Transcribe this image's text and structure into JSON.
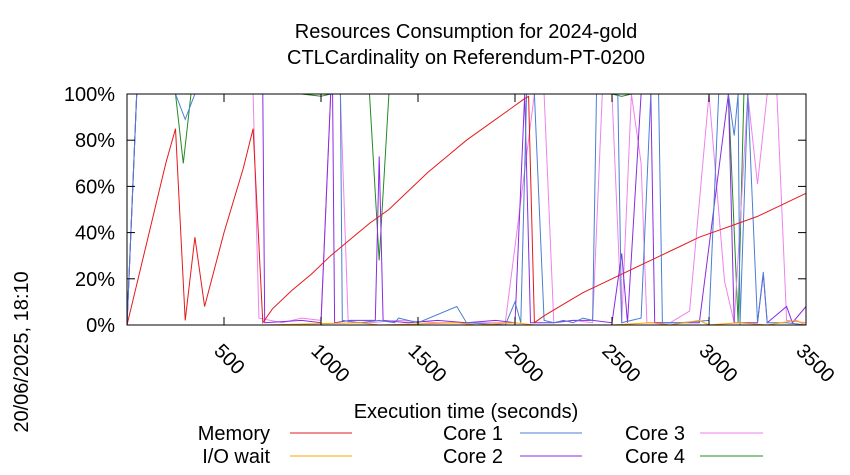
{
  "chart_data": {
    "type": "line",
    "title": "Resources Consumption for 2024-gold",
    "subtitle": "CTLCardinality on Referendum-PT-0200",
    "xlabel": "Execution time (seconds)",
    "ylabel": "",
    "timestamp": "20/06/2025, 18:10",
    "xlim": [
      0,
      3500
    ],
    "ylim": [
      0,
      100
    ],
    "x_ticks": [
      500,
      1000,
      1500,
      2000,
      2500,
      3000,
      3500
    ],
    "x_tick_labels": [
      "500",
      "1000",
      "1500",
      "2000",
      "2500",
      "3000",
      "3500"
    ],
    "y_ticks": [
      0,
      20,
      40,
      60,
      80,
      100
    ],
    "y_tick_labels": [
      "0%",
      "20%",
      "40%",
      "60%",
      "80%",
      "100%"
    ],
    "grid": false,
    "legend_position": "bottom",
    "series": [
      {
        "name": "Memory",
        "color": "#e41a1c",
        "points": [
          [
            0,
            0
          ],
          [
            100,
            35
          ],
          [
            200,
            70
          ],
          [
            250,
            85
          ],
          [
            300,
            2
          ],
          [
            350,
            38
          ],
          [
            400,
            8
          ],
          [
            500,
            40
          ],
          [
            600,
            68
          ],
          [
            650,
            85
          ],
          [
            700,
            1
          ],
          [
            750,
            7
          ],
          [
            850,
            15
          ],
          [
            950,
            22
          ],
          [
            1050,
            30
          ],
          [
            1150,
            37
          ],
          [
            1250,
            44
          ],
          [
            1350,
            50
          ],
          [
            1450,
            58
          ],
          [
            1550,
            66
          ],
          [
            1650,
            73
          ],
          [
            1750,
            80
          ],
          [
            1850,
            86
          ],
          [
            1950,
            92
          ],
          [
            2050,
            98
          ],
          [
            2070,
            99
          ],
          [
            2100,
            1
          ],
          [
            2150,
            4
          ],
          [
            2250,
            9
          ],
          [
            2350,
            14
          ],
          [
            2450,
            18
          ],
          [
            2550,
            22
          ],
          [
            2650,
            26
          ],
          [
            2750,
            30
          ],
          [
            2850,
            34
          ],
          [
            2950,
            38
          ],
          [
            3050,
            41
          ],
          [
            3150,
            44
          ],
          [
            3250,
            47
          ],
          [
            3350,
            51
          ],
          [
            3450,
            55
          ],
          [
            3500,
            57
          ]
        ]
      },
      {
        "name": "I/O wait",
        "color": "#ffa500",
        "points": [
          [
            0,
            0
          ],
          [
            700,
            0
          ],
          [
            1200,
            1
          ],
          [
            1300,
            0
          ],
          [
            1700,
            1
          ],
          [
            1800,
            0
          ],
          [
            2000,
            1
          ],
          [
            2100,
            0
          ],
          [
            2500,
            0
          ],
          [
            2700,
            1
          ],
          [
            2800,
            0
          ],
          [
            2950,
            2
          ],
          [
            3000,
            0
          ],
          [
            3150,
            1
          ],
          [
            3300,
            0
          ],
          [
            3450,
            2
          ],
          [
            3500,
            0
          ]
        ]
      },
      {
        "name": "Core 1",
        "color": "#4a7fd1",
        "points": [
          [
            0,
            0
          ],
          [
            50,
            100
          ],
          [
            250,
            100
          ],
          [
            300,
            89
          ],
          [
            350,
            100
          ],
          [
            1100,
            100
          ],
          [
            1110,
            2
          ],
          [
            1200,
            1
          ],
          [
            1300,
            2
          ],
          [
            1380,
            1
          ],
          [
            1400,
            3
          ],
          [
            1500,
            1
          ],
          [
            1700,
            8
          ],
          [
            1750,
            1
          ],
          [
            1950,
            0
          ],
          [
            2000,
            10
          ],
          [
            2030,
            1
          ],
          [
            2060,
            100
          ],
          [
            2100,
            100
          ],
          [
            2150,
            2
          ],
          [
            2200,
            1
          ],
          [
            2250,
            2
          ],
          [
            2300,
            1
          ],
          [
            2350,
            3
          ],
          [
            2400,
            2
          ],
          [
            2420,
            100
          ],
          [
            2530,
            100
          ],
          [
            2550,
            1
          ],
          [
            2600,
            2
          ],
          [
            2650,
            3
          ],
          [
            2700,
            100
          ],
          [
            2740,
            100
          ],
          [
            2760,
            1
          ],
          [
            2850,
            1
          ],
          [
            3000,
            2
          ],
          [
            3050,
            100
          ],
          [
            3100,
            100
          ],
          [
            3130,
            82
          ],
          [
            3150,
            100
          ],
          [
            3160,
            0
          ],
          [
            3200,
            100
          ],
          [
            3250,
            1
          ],
          [
            3280,
            23
          ],
          [
            3300,
            1
          ],
          [
            3400,
            1
          ],
          [
            3500,
            0
          ]
        ]
      },
      {
        "name": "Core 2",
        "color": "#8a2be2",
        "points": [
          [
            0,
            0
          ],
          [
            50,
            100
          ],
          [
            700,
            100
          ],
          [
            710,
            1
          ],
          [
            900,
            2
          ],
          [
            1000,
            1
          ],
          [
            1050,
            100
          ],
          [
            1060,
            100
          ],
          [
            1070,
            1
          ],
          [
            1150,
            2
          ],
          [
            1280,
            2
          ],
          [
            1300,
            73
          ],
          [
            1320,
            2
          ],
          [
            1450,
            1
          ],
          [
            1600,
            2
          ],
          [
            1750,
            1
          ],
          [
            1900,
            2
          ],
          [
            2000,
            1
          ],
          [
            2050,
            100
          ],
          [
            2080,
            1
          ],
          [
            2200,
            1
          ],
          [
            2300,
            2
          ],
          [
            2400,
            2
          ],
          [
            2500,
            1
          ],
          [
            2550,
            31
          ],
          [
            2580,
            1
          ],
          [
            2650,
            100
          ],
          [
            2700,
            100
          ],
          [
            2720,
            1
          ],
          [
            2850,
            1
          ],
          [
            2950,
            1
          ],
          [
            3100,
            100
          ],
          [
            3130,
            1
          ],
          [
            3250,
            1
          ],
          [
            3280,
            22
          ],
          [
            3300,
            1
          ],
          [
            3400,
            8
          ],
          [
            3430,
            1
          ],
          [
            3500,
            8
          ]
        ]
      },
      {
        "name": "Core 3",
        "color": "#ee82ee",
        "points": [
          [
            0,
            0
          ],
          [
            50,
            100
          ],
          [
            650,
            100
          ],
          [
            680,
            3
          ],
          [
            800,
            1
          ],
          [
            900,
            3
          ],
          [
            1000,
            2
          ],
          [
            1050,
            100
          ],
          [
            1100,
            100
          ],
          [
            1140,
            1
          ],
          [
            1250,
            1
          ],
          [
            1400,
            2
          ],
          [
            1600,
            1
          ],
          [
            1800,
            1
          ],
          [
            1950,
            1
          ],
          [
            2100,
            100
          ],
          [
            2150,
            100
          ],
          [
            2200,
            1
          ],
          [
            2300,
            2
          ],
          [
            2400,
            1
          ],
          [
            2450,
            100
          ],
          [
            2500,
            100
          ],
          [
            2550,
            1
          ],
          [
            2600,
            100
          ],
          [
            2650,
            70
          ],
          [
            2680,
            1
          ],
          [
            2800,
            1
          ],
          [
            2900,
            6
          ],
          [
            3000,
            100
          ],
          [
            3080,
            19
          ],
          [
            3130,
            1
          ],
          [
            3200,
            100
          ],
          [
            3250,
            61
          ],
          [
            3300,
            100
          ],
          [
            3350,
            100
          ],
          [
            3400,
            2
          ],
          [
            3500,
            1
          ]
        ]
      },
      {
        "name": "Core 4",
        "color": "#228b22",
        "points": [
          [
            0,
            0
          ],
          [
            50,
            100
          ],
          [
            250,
            100
          ],
          [
            290,
            70
          ],
          [
            330,
            100
          ],
          [
            900,
            100
          ],
          [
            1000,
            99
          ],
          [
            1050,
            100
          ],
          [
            1250,
            100
          ],
          [
            1300,
            28
          ],
          [
            1350,
            100
          ],
          [
            2100,
            100
          ],
          [
            2150,
            100
          ],
          [
            2500,
            100
          ],
          [
            2550,
            99
          ],
          [
            2600,
            100
          ],
          [
            3000,
            100
          ],
          [
            3100,
            100
          ],
          [
            3150,
            1
          ],
          [
            3180,
            100
          ],
          [
            3500,
            100
          ]
        ]
      }
    ]
  }
}
